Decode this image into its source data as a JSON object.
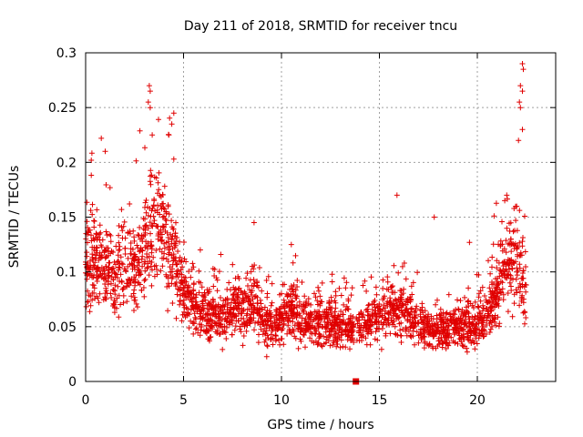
{
  "chart_data": {
    "type": "scatter",
    "title": "Day 211 of 2018, SRMTID for receiver tncu",
    "xlabel": "GPS time / hours",
    "ylabel": "SRMTID / TECUs",
    "xlim": [
      0,
      24
    ],
    "ylim": [
      0,
      0.3
    ],
    "xticks": [
      0,
      5,
      10,
      15,
      20
    ],
    "xtick_labels": [
      "0",
      "5",
      "10",
      "15",
      "20"
    ],
    "yticks": [
      0,
      0.05,
      0.1,
      0.15,
      0.2,
      0.25,
      0.3
    ],
    "ytick_labels": [
      "0",
      "0.05",
      "0.1",
      "0.15",
      "0.2",
      "0.25",
      "0.3"
    ],
    "grid": true,
    "marker": "plus",
    "color": "#e00000",
    "series": [
      {
        "name": "SRMTID",
        "trend": [
          [
            0.0,
            0.11
          ],
          [
            0.5,
            0.11
          ],
          [
            1.0,
            0.1
          ],
          [
            1.5,
            0.1
          ],
          [
            2.0,
            0.11
          ],
          [
            2.5,
            0.1
          ],
          [
            3.0,
            0.12
          ],
          [
            3.5,
            0.15
          ],
          [
            4.0,
            0.14
          ],
          [
            4.5,
            0.11
          ],
          [
            5.0,
            0.08
          ],
          [
            5.5,
            0.07
          ],
          [
            6.0,
            0.065
          ],
          [
            7.0,
            0.06
          ],
          [
            8.0,
            0.07
          ],
          [
            8.5,
            0.075
          ],
          [
            9.0,
            0.055
          ],
          [
            10.0,
            0.055
          ],
          [
            10.5,
            0.07
          ],
          [
            11.0,
            0.055
          ],
          [
            12.0,
            0.055
          ],
          [
            13.0,
            0.05
          ],
          [
            13.8,
            0.05
          ],
          [
            14.0,
            0.05
          ],
          [
            15.0,
            0.06
          ],
          [
            16.0,
            0.065
          ],
          [
            16.5,
            0.065
          ],
          [
            17.0,
            0.05
          ],
          [
            18.0,
            0.045
          ],
          [
            19.0,
            0.05
          ],
          [
            20.0,
            0.055
          ],
          [
            20.5,
            0.06
          ],
          [
            21.0,
            0.08
          ],
          [
            21.5,
            0.11
          ],
          [
            22.0,
            0.12
          ],
          [
            22.5,
            0.07
          ]
        ],
        "spikes": [
          [
            3.25,
            0.27
          ],
          [
            3.3,
            0.265
          ],
          [
            3.2,
            0.255
          ],
          [
            3.3,
            0.25
          ],
          [
            4.5,
            0.245
          ],
          [
            4.4,
            0.235
          ],
          [
            4.25,
            0.225
          ],
          [
            22.3,
            0.29
          ],
          [
            22.35,
            0.285
          ],
          [
            22.2,
            0.27
          ],
          [
            22.3,
            0.265
          ],
          [
            22.15,
            0.255
          ],
          [
            22.2,
            0.25
          ],
          [
            22.3,
            0.23
          ],
          [
            22.1,
            0.22
          ],
          [
            0.8,
            0.222
          ],
          [
            1.0,
            0.21
          ],
          [
            3.4,
            0.225
          ],
          [
            15.9,
            0.17
          ],
          [
            17.8,
            0.15
          ],
          [
            8.6,
            0.145
          ],
          [
            10.5,
            0.125
          ],
          [
            19.6,
            0.127
          ],
          [
            21.5,
            0.17
          ],
          [
            21.4,
            0.165
          ]
        ]
      },
      {
        "name": "marker",
        "points": [
          [
            13.8,
            0.0
          ]
        ]
      }
    ]
  }
}
